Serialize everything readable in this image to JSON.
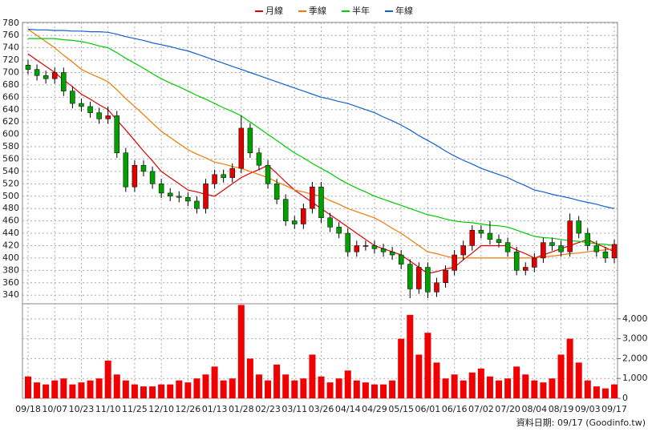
{
  "chart_data": {
    "type": "candlestick",
    "categories": [
      "09/18",
      null,
      null,
      "10/07",
      null,
      null,
      "10/23",
      null,
      null,
      "11/10",
      null,
      null,
      "11/25",
      null,
      null,
      "12/10",
      null,
      null,
      "12/26",
      null,
      null,
      "01/13",
      null,
      null,
      "01/28",
      null,
      null,
      "02/23",
      null,
      null,
      "03/11",
      null,
      null,
      "03/26",
      null,
      null,
      "04/14",
      null,
      null,
      "04/29",
      null,
      null,
      "05/15",
      null,
      null,
      "06/01",
      null,
      null,
      "06/16",
      null,
      null,
      "07/02",
      null,
      null,
      "07/20",
      null,
      null,
      "08/04",
      null,
      null,
      "08/19",
      null,
      null,
      "09/03",
      null,
      null,
      "09/17"
    ],
    "open": [
      712,
      705,
      695,
      690,
      700,
      670,
      650,
      645,
      635,
      625,
      630,
      570,
      515,
      550,
      540,
      520,
      505,
      500,
      498,
      492,
      480,
      520,
      535,
      530,
      545,
      610,
      570,
      550,
      520,
      495,
      460,
      455,
      480,
      515,
      465,
      450,
      440,
      410,
      420,
      420,
      415,
      410,
      405,
      390,
      350,
      385,
      345,
      360,
      380,
      405,
      420,
      445,
      440,
      430,
      425,
      410,
      380,
      385,
      400,
      425,
      420,
      410,
      460,
      440,
      420,
      410,
      400
    ],
    "high": [
      720,
      713,
      703,
      708,
      708,
      678,
      658,
      653,
      643,
      645,
      638,
      578,
      558,
      558,
      548,
      528,
      513,
      508,
      506,
      500,
      528,
      543,
      543,
      553,
      630,
      618,
      578,
      558,
      528,
      503,
      468,
      488,
      523,
      523,
      473,
      458,
      448,
      428,
      428,
      428,
      423,
      418,
      413,
      398,
      393,
      393,
      368,
      388,
      413,
      428,
      453,
      453,
      460,
      438,
      433,
      418,
      393,
      408,
      433,
      433,
      428,
      472,
      468,
      448,
      428,
      418,
      430
    ],
    "low": [
      697,
      687,
      682,
      682,
      662,
      642,
      637,
      627,
      617,
      617,
      562,
      507,
      507,
      532,
      512,
      497,
      492,
      490,
      484,
      472,
      472,
      512,
      522,
      522,
      537,
      562,
      542,
      512,
      487,
      452,
      447,
      447,
      472,
      457,
      442,
      432,
      402,
      402,
      412,
      407,
      402,
      397,
      382,
      335,
      342,
      335,
      337,
      352,
      372,
      397,
      412,
      432,
      422,
      417,
      402,
      372,
      372,
      377,
      392,
      412,
      402,
      402,
      432,
      412,
      402,
      392,
      392
    ],
    "close": [
      705,
      695,
      690,
      700,
      670,
      650,
      645,
      635,
      625,
      630,
      570,
      515,
      550,
      540,
      520,
      505,
      500,
      498,
      492,
      480,
      520,
      535,
      530,
      545,
      610,
      570,
      550,
      520,
      495,
      460,
      455,
      480,
      515,
      465,
      450,
      440,
      410,
      420,
      420,
      415,
      410,
      405,
      390,
      350,
      385,
      345,
      360,
      380,
      405,
      420,
      445,
      440,
      430,
      425,
      410,
      380,
      385,
      400,
      425,
      420,
      410,
      460,
      440,
      420,
      410,
      400,
      422
    ],
    "volume": [
      1100,
      800,
      700,
      900,
      1000,
      700,
      800,
      900,
      1000,
      1900,
      1200,
      900,
      700,
      600,
      600,
      700,
      700,
      900,
      800,
      1000,
      1200,
      1600,
      900,
      1000,
      4700,
      2000,
      1200,
      900,
      1700,
      1200,
      900,
      1000,
      2200,
      1100,
      800,
      1000,
      1400,
      900,
      800,
      700,
      700,
      900,
      3000,
      4200,
      2200,
      3300,
      1800,
      1000,
      1200,
      900,
      1300,
      1500,
      1100,
      900,
      1000,
      1600,
      1200,
      900,
      800,
      1000,
      2200,
      3000,
      1800,
      900,
      600,
      500,
      700
    ],
    "up_color": "#e00000",
    "down_color": "#00a000",
    "volume_color": "#f00000",
    "series": [
      {
        "name": "月線",
        "color": "#e00000",
        "values": [
          730,
          720,
          710,
          700,
          688,
          677,
          665,
          657,
          648,
          640,
          623,
          607,
          590,
          573,
          557,
          540,
          530,
          520,
          510,
          507,
          503,
          500,
          510,
          520,
          530,
          537,
          543,
          550,
          537,
          523,
          510,
          500,
          490,
          480,
          470,
          460,
          450,
          440,
          430,
          420,
          415,
          410,
          405,
          395,
          385,
          375,
          378,
          382,
          385,
          397,
          408,
          420,
          420,
          420,
          420,
          413,
          407,
          400,
          405,
          410,
          415,
          420,
          425,
          430,
          423,
          417,
          410
        ]
      },
      {
        "name": "季線",
        "color": "#f07800",
        "values": [
          770,
          760,
          750,
          740,
          728,
          717,
          705,
          698,
          692,
          685,
          672,
          658,
          645,
          632,
          618,
          605,
          595,
          585,
          575,
          568,
          562,
          555,
          552,
          548,
          545,
          540,
          535,
          530,
          523,
          517,
          510,
          507,
          503,
          500,
          493,
          487,
          480,
          475,
          470,
          465,
          457,
          448,
          440,
          430,
          420,
          410,
          407,
          403,
          400,
          400,
          400,
          400,
          400,
          400,
          400,
          400,
          400,
          400,
          402,
          403,
          405,
          407,
          408,
          410,
          412,
          413,
          415
        ]
      },
      {
        "name": "半年",
        "color": "#00cc00",
        "values": [
          755,
          755,
          755,
          755,
          753,
          752,
          750,
          747,
          743,
          740,
          732,
          723,
          715,
          707,
          698,
          690,
          683,
          677,
          670,
          663,
          657,
          650,
          643,
          637,
          630,
          620,
          610,
          600,
          590,
          580,
          570,
          562,
          553,
          545,
          537,
          528,
          520,
          513,
          507,
          500,
          495,
          490,
          485,
          480,
          475,
          470,
          467,
          463,
          460,
          458,
          457,
          455,
          453,
          452,
          450,
          445,
          440,
          435,
          433,
          432,
          430,
          428,
          427,
          425,
          423,
          422,
          420
        ]
      },
      {
        "name": "年線",
        "color": "#1060d0",
        "values": [
          770,
          769,
          769,
          768,
          768,
          767,
          767,
          766,
          766,
          765,
          762,
          758,
          755,
          752,
          748,
          745,
          742,
          738,
          735,
          730,
          725,
          720,
          715,
          710,
          705,
          700,
          695,
          690,
          685,
          680,
          675,
          670,
          665,
          660,
          657,
          653,
          650,
          645,
          640,
          635,
          628,
          622,
          615,
          607,
          598,
          590,
          582,
          573,
          565,
          558,
          552,
          545,
          540,
          535,
          530,
          523,
          517,
          510,
          507,
          503,
          500,
          497,
          493,
          490,
          487,
          483,
          480
        ]
      }
    ],
    "ylim": [
      326,
      781
    ],
    "yticks": [
      340,
      360,
      380,
      400,
      420,
      440,
      460,
      480,
      500,
      520,
      540,
      560,
      580,
      600,
      620,
      640,
      660,
      680,
      700,
      720,
      740,
      760,
      780
    ],
    "y2lim": [
      0,
      4760
    ],
    "y2ticks": [
      0,
      {
        "value": 1000,
        "label": "1,000"
      },
      {
        "value": 2000,
        "label": "2,000"
      },
      {
        "value": 3000,
        "label": "3,000"
      },
      {
        "value": 4000,
        "label": "4,000"
      }
    ],
    "grid": true,
    "footer": "資料日期: 09/17 (Goodinfo.tw)"
  }
}
